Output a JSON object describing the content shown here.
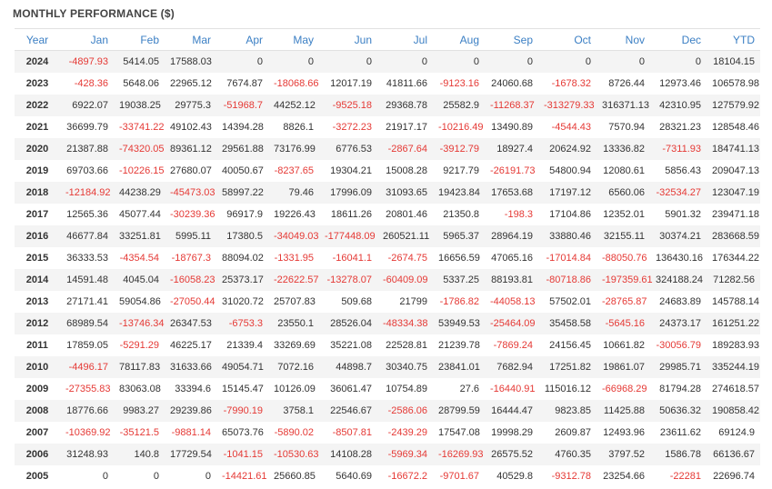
{
  "title": "MONTHLY PERFORMANCE ($)",
  "headers": [
    "Year",
    "Jan",
    "Feb",
    "Mar",
    "Apr",
    "May",
    "Jun",
    "Jul",
    "Aug",
    "Sep",
    "Oct",
    "Nov",
    "Dec",
    "YTD"
  ],
  "rows": [
    [
      "2024",
      "-4897.93",
      "5414.05",
      "17588.03",
      "0",
      "0",
      "0",
      "0",
      "0",
      "0",
      "0",
      "0",
      "0",
      "18104.15"
    ],
    [
      "2023",
      "-428.36",
      "5648.06",
      "22965.12",
      "7674.87",
      "-18068.66",
      "12017.19",
      "41811.66",
      "-9123.16",
      "24060.68",
      "-1678.32",
      "8726.44",
      "12973.46",
      "106578.98"
    ],
    [
      "2022",
      "6922.07",
      "19038.25",
      "29775.3",
      "-51968.7",
      "44252.12",
      "-9525.18",
      "29368.78",
      "25582.9",
      "-11268.37",
      "-313279.33",
      "316371.13",
      "42310.95",
      "127579.92"
    ],
    [
      "2021",
      "36699.79",
      "-33741.22",
      "49102.43",
      "14394.28",
      "8826.1",
      "-3272.23",
      "21917.17",
      "-10216.49",
      "13490.89",
      "-4544.43",
      "7570.94",
      "28321.23",
      "128548.46"
    ],
    [
      "2020",
      "21387.88",
      "-74320.05",
      "89361.12",
      "29561.88",
      "73176.99",
      "6776.53",
      "-2867.64",
      "-3912.79",
      "18927.4",
      "20624.92",
      "13336.82",
      "-7311.93",
      "184741.13"
    ],
    [
      "2019",
      "69703.66",
      "-10226.15",
      "27680.07",
      "40050.67",
      "-8237.65",
      "19304.21",
      "15008.28",
      "9217.79",
      "-26191.73",
      "54800.94",
      "12080.61",
      "5856.43",
      "209047.13"
    ],
    [
      "2018",
      "-12184.92",
      "44238.29",
      "-45473.03",
      "58997.22",
      "79.46",
      "17996.09",
      "31093.65",
      "19423.84",
      "17653.68",
      "17197.12",
      "6560.06",
      "-32534.27",
      "123047.19"
    ],
    [
      "2017",
      "12565.36",
      "45077.44",
      "-30239.36",
      "96917.9",
      "19226.43",
      "18611.26",
      "20801.46",
      "21350.8",
      "-198.3",
      "17104.86",
      "12352.01",
      "5901.32",
      "239471.18"
    ],
    [
      "2016",
      "46677.84",
      "33251.81",
      "5995.11",
      "17380.5",
      "-34049.03",
      "-177448.09",
      "260521.11",
      "5965.37",
      "28964.19",
      "33880.46",
      "32155.11",
      "30374.21",
      "283668.59"
    ],
    [
      "2015",
      "36333.53",
      "-4354.54",
      "-18767.3",
      "88094.02",
      "-1331.95",
      "-16041.1",
      "-2674.75",
      "16656.59",
      "47065.16",
      "-17014.84",
      "-88050.76",
      "136430.16",
      "176344.22"
    ],
    [
      "2014",
      "14591.48",
      "4045.04",
      "-16058.23",
      "25373.17",
      "-22622.57",
      "-13278.07",
      "-60409.09",
      "5337.25",
      "88193.81",
      "-80718.86",
      "-197359.61",
      "324188.24",
      "71282.56"
    ],
    [
      "2013",
      "27171.41",
      "59054.86",
      "-27050.44",
      "31020.72",
      "25707.83",
      "509.68",
      "21799",
      "-1786.82",
      "-44058.13",
      "57502.01",
      "-28765.87",
      "24683.89",
      "145788.14"
    ],
    [
      "2012",
      "68989.54",
      "-13746.34",
      "26347.53",
      "-6753.3",
      "23550.1",
      "28526.04",
      "-48334.38",
      "53949.53",
      "-25464.09",
      "35458.58",
      "-5645.16",
      "24373.17",
      "161251.22"
    ],
    [
      "2011",
      "17859.05",
      "-5291.29",
      "46225.17",
      "21339.4",
      "33269.69",
      "35221.08",
      "22528.81",
      "21239.78",
      "-7869.24",
      "24156.45",
      "10661.82",
      "-30056.79",
      "189283.93"
    ],
    [
      "2010",
      "-4496.17",
      "78117.83",
      "31633.66",
      "49054.71",
      "7072.16",
      "44898.7",
      "30340.75",
      "23841.01",
      "7682.94",
      "17251.82",
      "19861.07",
      "29985.71",
      "335244.19"
    ],
    [
      "2009",
      "-27355.83",
      "83063.08",
      "33394.6",
      "15145.47",
      "10126.09",
      "36061.47",
      "10754.89",
      "27.6",
      "-16440.91",
      "115016.12",
      "-66968.29",
      "81794.28",
      "274618.57"
    ],
    [
      "2008",
      "18776.66",
      "9983.27",
      "29239.86",
      "-7990.19",
      "3758.1",
      "22546.67",
      "-2586.06",
      "28799.59",
      "16444.47",
      "9823.85",
      "11425.88",
      "50636.32",
      "190858.42"
    ],
    [
      "2007",
      "-10369.92",
      "-35121.5",
      "-9881.14",
      "65073.76",
      "-5890.02",
      "-8507.81",
      "-2439.29",
      "17547.08",
      "19998.29",
      "2609.87",
      "12493.96",
      "23611.62",
      "69124.9"
    ],
    [
      "2006",
      "31248.93",
      "140.8",
      "17729.54",
      "-1041.15",
      "-10530.63",
      "14108.28",
      "-5969.34",
      "-16269.93",
      "26575.52",
      "4760.35",
      "3797.52",
      "1586.78",
      "66136.67"
    ],
    [
      "2005",
      "0",
      "0",
      "0",
      "-14421.61",
      "25660.85",
      "5640.69",
      "-16672.2",
      "-9701.67",
      "40529.8",
      "-9312.78",
      "23254.66",
      "-22281",
      "22696.74"
    ]
  ],
  "colors": {
    "header_text": "#3b7fc4",
    "negative": "#e53935",
    "stripe": "#f4f4f4"
  }
}
